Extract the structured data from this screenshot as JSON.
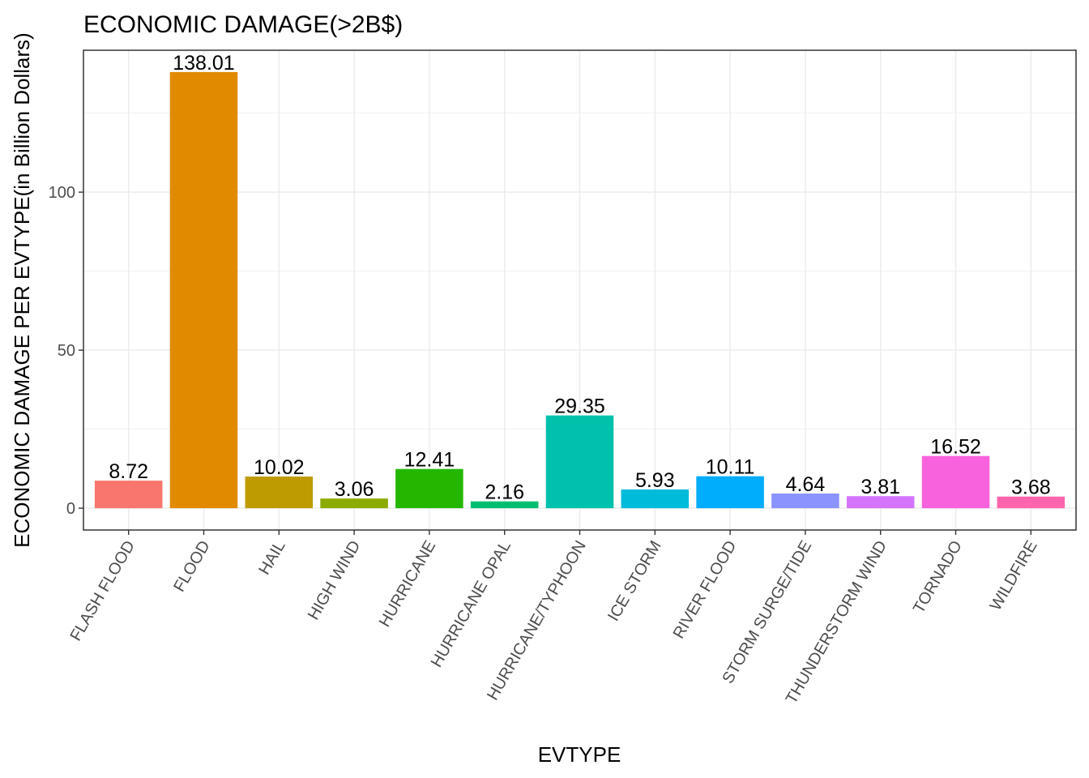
{
  "chart_data": {
    "type": "bar",
    "title": "ECONOMIC DAMAGE(>2B$)",
    "xlabel": "EVTYPE",
    "ylabel": "ECONOMIC DAMAGE PER EVTYPE(in Billion Dollars)",
    "ylim": [
      -6.9,
      144.9
    ],
    "yticks": [
      0,
      50,
      100
    ],
    "grid": true,
    "legend": "none",
    "categories": [
      "FLASH FLOOD",
      "FLOOD",
      "HAIL",
      "HIGH WIND",
      "HURRICANE",
      "HURRICANE OPAL",
      "HURRICANE/TYPHOON",
      "ICE STORM",
      "RIVER FLOOD",
      "STORM SURGE/TIDE",
      "THUNDERSTORM WIND",
      "TORNADO",
      "WILDFIRE"
    ],
    "values": [
      8.72,
      138.01,
      10.02,
      3.06,
      12.41,
      2.16,
      29.35,
      5.93,
      10.11,
      4.64,
      3.81,
      16.52,
      3.68
    ],
    "labels": [
      "8.72",
      "138.01",
      "10.02",
      "3.06",
      "12.41",
      "2.16",
      "29.35",
      "5.93",
      "10.11",
      "4.64",
      "3.81",
      "16.52",
      "3.68"
    ],
    "colors": [
      "#F8766D",
      "#E18A00",
      "#BE9C00",
      "#8CAB00",
      "#24B700",
      "#00BE70",
      "#00C1AB",
      "#00BBDA",
      "#00ACFC",
      "#8B93FF",
      "#D575FE",
      "#F962DD",
      "#FF65AC"
    ]
  }
}
